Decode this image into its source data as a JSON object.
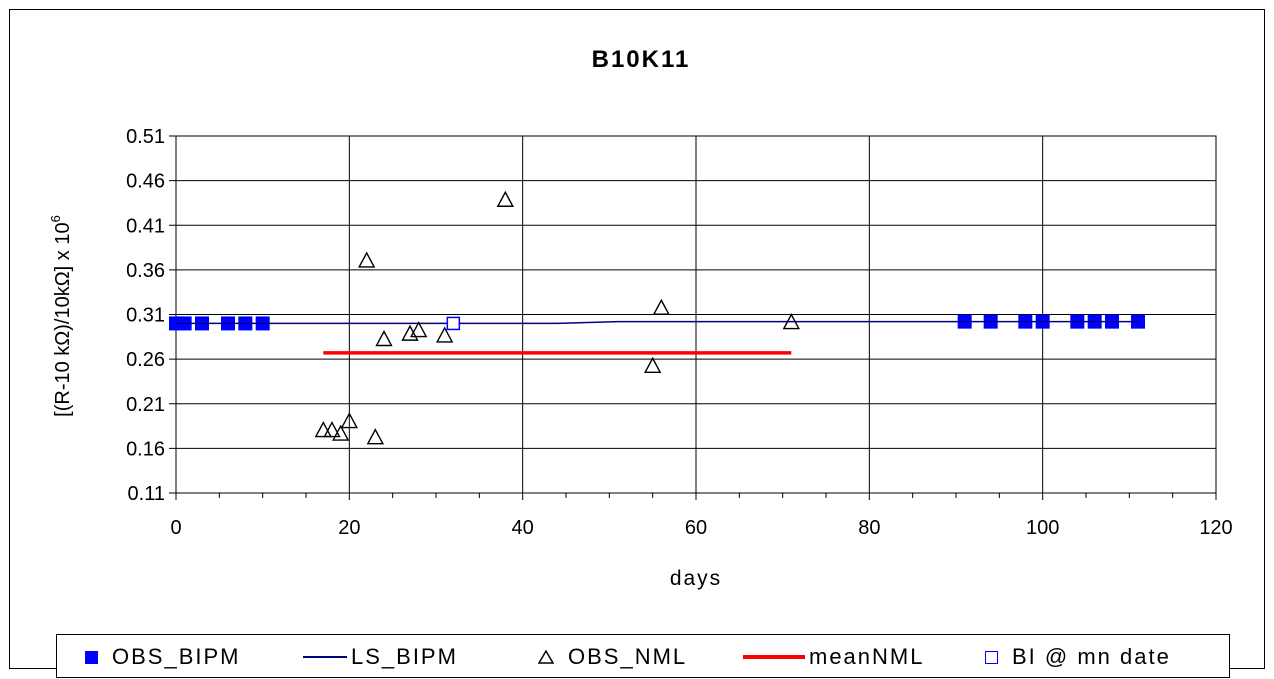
{
  "chart_data": {
    "type": "scatter",
    "title": "B10K11",
    "xlabel": "days",
    "ylabel": "[(R-10 kΩ)/10kΩ] x 10",
    "ylabel_superscript": "6",
    "xlim": [
      0,
      120
    ],
    "ylim": [
      0.11,
      0.51
    ],
    "x_ticks": [
      "0",
      "20",
      "40",
      "60",
      "80",
      "100",
      "120"
    ],
    "y_ticks": [
      "0.11",
      "0.16",
      "0.21",
      "0.26",
      "0.31",
      "0.36",
      "0.41",
      "0.46",
      "0.51"
    ],
    "grid": true,
    "legend_position": "bottom",
    "series": [
      {
        "name": "OBS_BIPM",
        "marker": "filled-square",
        "color": "#0000ff",
        "x": [
          0,
          1,
          3,
          6,
          8,
          10,
          91,
          94,
          98,
          100,
          104,
          106,
          108,
          111
        ],
        "y": [
          0.3,
          0.3,
          0.3,
          0.3,
          0.3,
          0.3,
          0.302,
          0.302,
          0.302,
          0.302,
          0.302,
          0.302,
          0.302,
          0.302
        ]
      },
      {
        "name": "LS_BIPM",
        "marker": "line",
        "color": "#000080",
        "x": [
          0,
          44,
          51,
          111
        ],
        "y": [
          0.3,
          0.3,
          0.302,
          0.302
        ]
      },
      {
        "name": "OBS_NML",
        "marker": "open-triangle",
        "color": "#000000",
        "x": [
          17,
          18,
          19,
          20,
          22,
          23,
          24,
          27,
          28,
          31,
          38,
          55,
          56,
          71
        ],
        "y": [
          0.18,
          0.18,
          0.176,
          0.19,
          0.37,
          0.172,
          0.282,
          0.288,
          0.292,
          0.286,
          0.438,
          0.252,
          0.317,
          0.301
        ]
      },
      {
        "name": "meanNML",
        "marker": "line",
        "color": "#ff0000",
        "x": [
          17,
          71
        ],
        "y": [
          0.267,
          0.267
        ]
      },
      {
        "name": "BI @ mn date",
        "marker": "open-square",
        "color": "#0000ff",
        "x": [
          32
        ],
        "y": [
          0.3
        ]
      }
    ]
  }
}
